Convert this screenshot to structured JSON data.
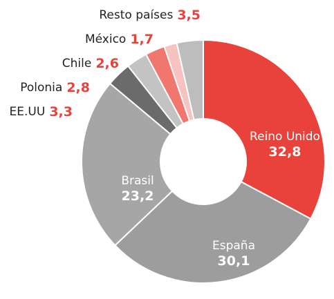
{
  "chart_data": {
    "type": "donut",
    "categories": [
      "Reino Unido",
      "España",
      "Brasil",
      "EE.UU",
      "Polonia",
      "Chile",
      "México",
      "Resto países"
    ],
    "values": [
      32.8,
      30.1,
      23.2,
      3.3,
      2.8,
      2.6,
      1.7,
      3.5
    ],
    "value_labels": [
      "32,8",
      "30,1",
      "23,2",
      "3,3",
      "2,8",
      "2,6",
      "1,7",
      "3,5"
    ],
    "colors": [
      "#e8423a",
      "#9d9d9d",
      "#a6a6a6",
      "#6b6b6b",
      "#c3c3c3",
      "#f0766e",
      "#f7c3c0",
      "#bdbdbd"
    ]
  }
}
